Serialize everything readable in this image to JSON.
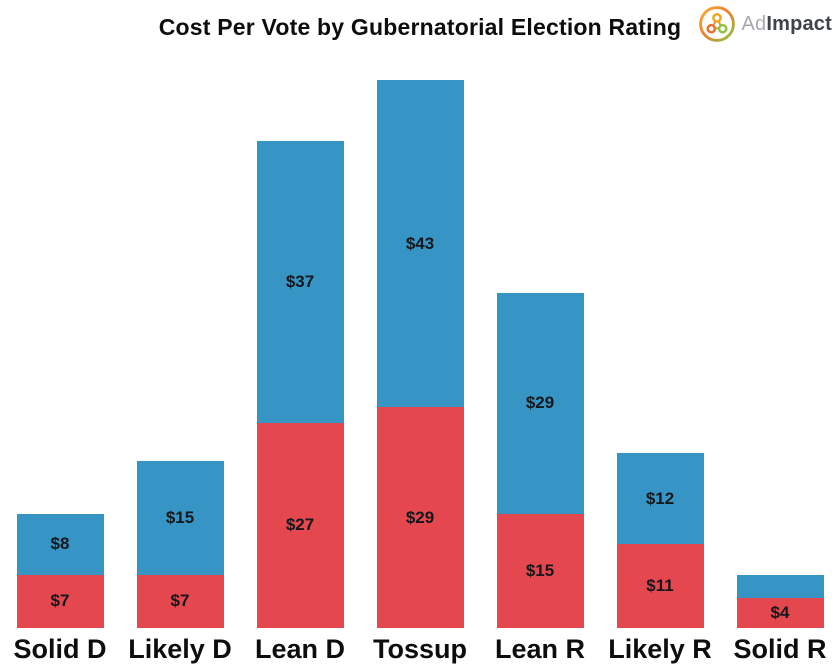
{
  "header": {
    "title": "Cost Per Vote by Gubernatorial Election Rating",
    "logo": {
      "prefix": "Ad",
      "suffix": "Impact",
      "icon": "adimpact-molecule-icon",
      "colors": {
        "prefix_text": "#A7ABB0",
        "suffix_text": "#3E4349",
        "ring_start": "#F9B233",
        "ring_mid": "#EF7D2E",
        "ring_end": "#8BC540",
        "dot_top": "#F2A51F",
        "dot_left": "#EC6E2D",
        "dot_right": "#8BC540",
        "link_lines": "#E0922E"
      }
    }
  },
  "chart_data": {
    "type": "bar",
    "stacked": true,
    "title": "Cost Per Vote by Gubernatorial Election Rating",
    "categories": [
      "Solid D",
      "Likely D",
      "Lean D",
      "Tossup",
      "Lean R",
      "Likely R",
      "Solid R"
    ],
    "series": [
      {
        "name": "red-bottom-segment",
        "color": "#E4484E",
        "values": [
          7,
          7,
          27,
          29,
          15,
          11,
          4
        ],
        "labels": [
          "$7",
          "$7",
          "$27",
          "$29",
          "$15",
          "$11",
          "$4"
        ]
      },
      {
        "name": "blue-top-segment",
        "color": "#3795C5",
        "values": [
          8,
          15,
          37,
          43,
          29,
          12,
          3
        ],
        "labels": [
          "$8",
          "$15",
          "$37",
          "$43",
          "$29",
          "$12",
          ""
        ]
      }
    ],
    "totals": [
      15,
      22,
      64,
      72,
      44,
      23,
      7
    ],
    "xlabel": "",
    "ylabel": "",
    "ylim": [
      0,
      75
    ],
    "grid": false,
    "legend": "none",
    "axes_shown": false,
    "value_label_color": "#14181c"
  }
}
